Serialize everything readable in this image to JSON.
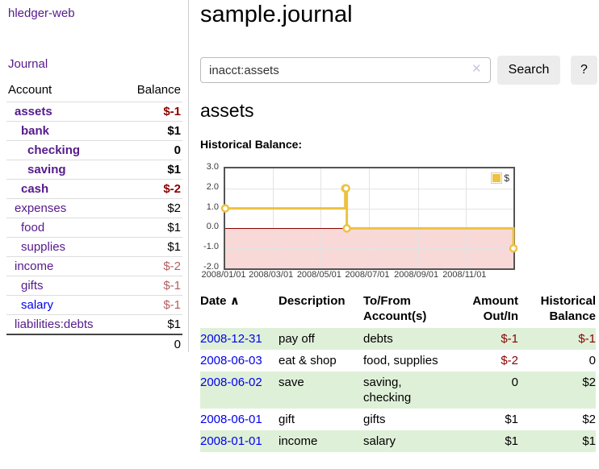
{
  "colors": {
    "visited_link_purple": "#551a8b",
    "unvisited_link_blue": "#0000ee",
    "negative_strong_red": "#8b0000",
    "negative_soft_red": "#b25e5e",
    "row_stripe_green": "#dff0d8",
    "chart_line_gold": "#edc240",
    "chart_negative_region_pink": "#f9d8d8",
    "button_gray": "#ececec"
  },
  "sidebar": {
    "app_title": "hledger-web",
    "journal_link": "Journal",
    "accounts": {
      "header": {
        "account": "Account",
        "balance": "Balance"
      },
      "rows": [
        {
          "name": "assets",
          "balance": "$-1"
        },
        {
          "name": "bank",
          "balance": "$1"
        },
        {
          "name": "checking",
          "balance": "0"
        },
        {
          "name": "saving",
          "balance": "$1"
        },
        {
          "name": "cash",
          "balance": "$-2"
        },
        {
          "name": "expenses",
          "balance": "$2"
        },
        {
          "name": "food",
          "balance": "$1"
        },
        {
          "name": "supplies",
          "balance": "$1"
        },
        {
          "name": "income",
          "balance": "$-2"
        },
        {
          "name": "gifts",
          "balance": "$-1"
        },
        {
          "name": "salary",
          "balance": "$-1"
        },
        {
          "name": "liabilities:debts",
          "balance": "$1"
        }
      ],
      "total": "0"
    }
  },
  "main": {
    "title": "sample.journal",
    "search": {
      "value": "inacct:assets",
      "clear_icon": "✕",
      "button": "Search",
      "help": "?"
    },
    "section_heading": "assets",
    "chart_label": "Historical Balance:",
    "register": {
      "headers": {
        "date": "Date",
        "sort_icon": "∧",
        "description": "Description",
        "accounts": "To/From Account(s)",
        "amount": "Amount Out/In",
        "balance": "Historical Balance"
      },
      "rows": [
        {
          "date": "2008-12-31",
          "description": "pay off",
          "accounts": "debts",
          "amount": "$-1",
          "balance": "$-1"
        },
        {
          "date": "2008-06-03",
          "description": "eat & shop",
          "accounts": "food, supplies",
          "amount": "$-2",
          "balance": "0"
        },
        {
          "date": "2008-06-02",
          "description": "save",
          "accounts": "saving, checking",
          "amount": "0",
          "balance": "$2"
        },
        {
          "date": "2008-06-01",
          "description": "gift",
          "accounts": "gifts",
          "amount": "$1",
          "balance": "$2"
        },
        {
          "date": "2008-01-01",
          "description": "income",
          "accounts": "salary",
          "amount": "$1",
          "balance": "$1"
        }
      ]
    }
  },
  "chart_data": {
    "type": "line",
    "step": true,
    "title": "Historical Balance",
    "legend": [
      {
        "label": "$",
        "color": "#edc240"
      }
    ],
    "x": [
      "2008-01-01",
      "2008-06-01",
      "2008-06-02",
      "2008-06-03",
      "2008-12-31"
    ],
    "x_days": [
      0,
      152,
      153,
      154,
      365
    ],
    "values": [
      1,
      2,
      2,
      0,
      -1
    ],
    "ylim": [
      -2,
      3
    ],
    "x_range_days": 365,
    "y_ticks": [
      "3.0",
      "2.0",
      "1.0",
      "0.0",
      "-1.0",
      "-2.0"
    ],
    "x_ticks": [
      {
        "label": "2008/01/01",
        "day": 0
      },
      {
        "label": "2008/03/01",
        "day": 60
      },
      {
        "label": "2008/05/01",
        "day": 121
      },
      {
        "label": "2008/07/01",
        "day": 182
      },
      {
        "label": "2008/09/01",
        "day": 244
      },
      {
        "label": "2008/11/01",
        "day": 305
      }
    ],
    "grid": true,
    "legend_position": "top-right",
    "zero_line_color": "#8b0000",
    "negative_region_color": "#f9d8d8",
    "line_color": "#edc240"
  }
}
